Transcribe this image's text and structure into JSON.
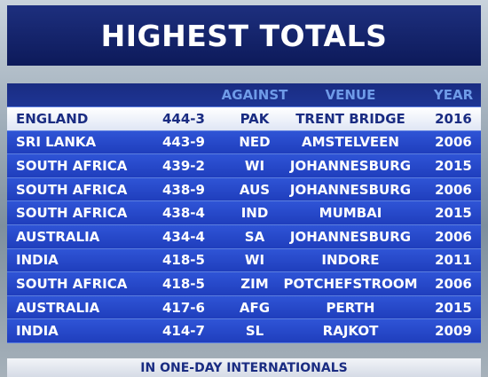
{
  "title": "HIGHEST TOTALS",
  "table": {
    "header": [
      "AGAINST",
      "VENUE",
      "YEAR"
    ],
    "rows": [
      [
        "ENGLAND",
        "444-3",
        "PAK",
        "TRENT BRIDGE",
        2016
      ],
      [
        "SRI LANKA",
        "443-9",
        "NED",
        "AMSTELVEEN",
        2006
      ],
      [
        "SOUTH AFRICA",
        "439-2",
        "WI",
        "JOHANNESBURG",
        2015
      ],
      [
        "SOUTH AFRICA",
        "438-9",
        "AUS",
        "JOHANNESBURG",
        2006
      ],
      [
        "SOUTH AFRICA",
        "438-4",
        "IND",
        "MUMBAI",
        2015
      ],
      [
        "AUSTRALIA",
        "434-4",
        "SA",
        "JOHANNESBURG",
        2006
      ],
      [
        "INDIA",
        "418-5",
        "WI",
        "INDORE",
        2011
      ],
      [
        "SOUTH AFRICA",
        "418-5",
        "ZIM",
        "POTCHEFSTROOM",
        2006
      ],
      [
        "AUSTRALIA",
        "417-6",
        "AFG",
        "PERTH",
        2015
      ],
      [
        "INDIA",
        "414-7",
        "SL",
        "RAJKOT",
        2009
      ]
    ]
  },
  "footer": "IN ONE-DAY INTERNATIONALS"
}
